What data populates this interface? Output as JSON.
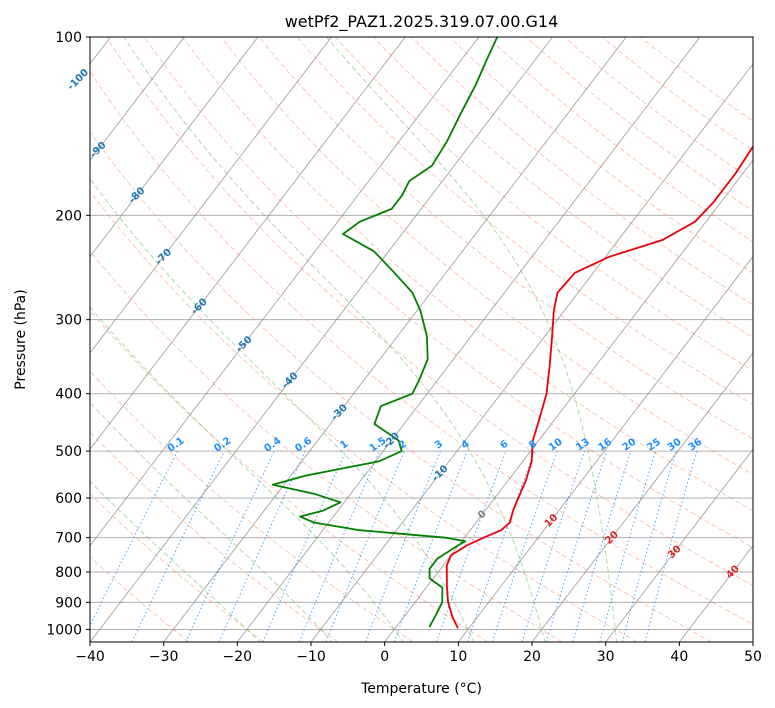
{
  "chart_data": {
    "type": "line",
    "subtype": "skew-t log-p",
    "title": "wetPf2_PAZ1.2025.319.07.00.G14",
    "xlabel": "Temperature (°C)",
    "ylabel": "Pressure (hPa)",
    "xlim": [
      -40,
      50
    ],
    "ylim": [
      1050,
      100
    ],
    "x_ticks": [
      -40,
      -30,
      -20,
      -10,
      0,
      10,
      20,
      30,
      40,
      50
    ],
    "y_ticks": [
      1000,
      900,
      800,
      700,
      600,
      500,
      400,
      300,
      200,
      100
    ],
    "series": [
      {
        "name": "Temperature",
        "color": "#e8000b",
        "points": [
          {
            "p": 995,
            "t": 8.5
          },
          {
            "p": 950,
            "t": 6.5
          },
          {
            "p": 900,
            "t": 4.5
          },
          {
            "p": 850,
            "t": 2.8
          },
          {
            "p": 810,
            "t": 1.5
          },
          {
            "p": 780,
            "t": 0.5
          },
          {
            "p": 750,
            "t": 0.0
          },
          {
            "p": 720,
            "t": 1.2
          },
          {
            "p": 700,
            "t": 2.6
          },
          {
            "p": 680,
            "t": 4.2
          },
          {
            "p": 660,
            "t": 4.6
          },
          {
            "p": 630,
            "t": 3.8
          },
          {
            "p": 600,
            "t": 3.2
          },
          {
            "p": 560,
            "t": 2.4
          },
          {
            "p": 520,
            "t": 1.2
          },
          {
            "p": 480,
            "t": -0.8
          },
          {
            "p": 440,
            "t": -2.2
          },
          {
            "p": 400,
            "t": -3.8
          },
          {
            "p": 360,
            "t": -6.2
          },
          {
            "p": 320,
            "t": -9.0
          },
          {
            "p": 290,
            "t": -11.4
          },
          {
            "p": 270,
            "t": -12.8
          },
          {
            "p": 250,
            "t": -12.5
          },
          {
            "p": 235,
            "t": -9.5
          },
          {
            "p": 220,
            "t": -4.0
          },
          {
            "p": 205,
            "t": -1.5
          },
          {
            "p": 190,
            "t": -1.0
          },
          {
            "p": 170,
            "t": -1.0
          },
          {
            "p": 150,
            "t": -1.5
          },
          {
            "p": 135,
            "t": -2.5
          },
          {
            "p": 125,
            "t": -5.0
          },
          {
            "p": 110,
            "t": -7.5
          },
          {
            "p": 100,
            "t": -9.5
          }
        ]
      },
      {
        "name": "Dewpoint",
        "color": "#008000",
        "points": [
          {
            "p": 990,
            "t": 4.5
          },
          {
            "p": 950,
            "t": 4.2
          },
          {
            "p": 900,
            "t": 3.7
          },
          {
            "p": 850,
            "t": 2.2
          },
          {
            "p": 820,
            "t": -0.5
          },
          {
            "p": 790,
            "t": -1.5
          },
          {
            "p": 760,
            "t": -1.5
          },
          {
            "p": 720,
            "t": 0.0
          },
          {
            "p": 710,
            "t": 0.5
          },
          {
            "p": 700,
            "t": -2.5
          },
          {
            "p": 680,
            "t": -15.0
          },
          {
            "p": 660,
            "t": -22.0
          },
          {
            "p": 645,
            "t": -24.5
          },
          {
            "p": 630,
            "t": -22.0
          },
          {
            "p": 610,
            "t": -20.5
          },
          {
            "p": 590,
            "t": -25.0
          },
          {
            "p": 570,
            "t": -31.5
          },
          {
            "p": 550,
            "t": -28.0
          },
          {
            "p": 520,
            "t": -19.5
          },
          {
            "p": 500,
            "t": -17.5
          },
          {
            "p": 480,
            "t": -19.0
          },
          {
            "p": 450,
            "t": -24.0
          },
          {
            "p": 420,
            "t": -25.0
          },
          {
            "p": 400,
            "t": -22.0
          },
          {
            "p": 380,
            "t": -22.5
          },
          {
            "p": 350,
            "t": -23.5
          },
          {
            "p": 320,
            "t": -26.0
          },
          {
            "p": 290,
            "t": -29.5
          },
          {
            "p": 270,
            "t": -32.5
          },
          {
            "p": 250,
            "t": -37.0
          },
          {
            "p": 230,
            "t": -42.0
          },
          {
            "p": 215,
            "t": -48.0
          },
          {
            "p": 205,
            "t": -47.0
          },
          {
            "p": 195,
            "t": -44.0
          },
          {
            "p": 185,
            "t": -44.0
          },
          {
            "p": 175,
            "t": -44.5
          },
          {
            "p": 165,
            "t": -43.0
          },
          {
            "p": 150,
            "t": -43.5
          },
          {
            "p": 135,
            "t": -44.5
          },
          {
            "p": 120,
            "t": -45.5
          },
          {
            "p": 110,
            "t": -46.5
          },
          {
            "p": 100,
            "t": -47.5
          }
        ]
      }
    ],
    "isotherm_labels": [
      "-100",
      "-90",
      "-80",
      "-70",
      "-60",
      "-50",
      "-40",
      "-30",
      "-20",
      "-10",
      "0",
      "10",
      "20",
      "30",
      "40"
    ],
    "isotherm_colors": {
      "cold": "#1f77b4",
      "zero": "#808080",
      "warm": "#d62728"
    },
    "mixing_ratio_labels": [
      "0.1",
      "0.2",
      "0.4",
      "0.6",
      "1",
      "1.5",
      "2",
      "3",
      "4",
      "6",
      "8",
      "10",
      "13",
      "16",
      "20",
      "25",
      "30",
      "36"
    ],
    "mixing_ratio_color": "#1e90ff",
    "dry_adiabat_color": "#ff7f50",
    "moist_adiabat_color": "#2ca02c",
    "isotherm_line_color": "#808080",
    "grid": true
  }
}
